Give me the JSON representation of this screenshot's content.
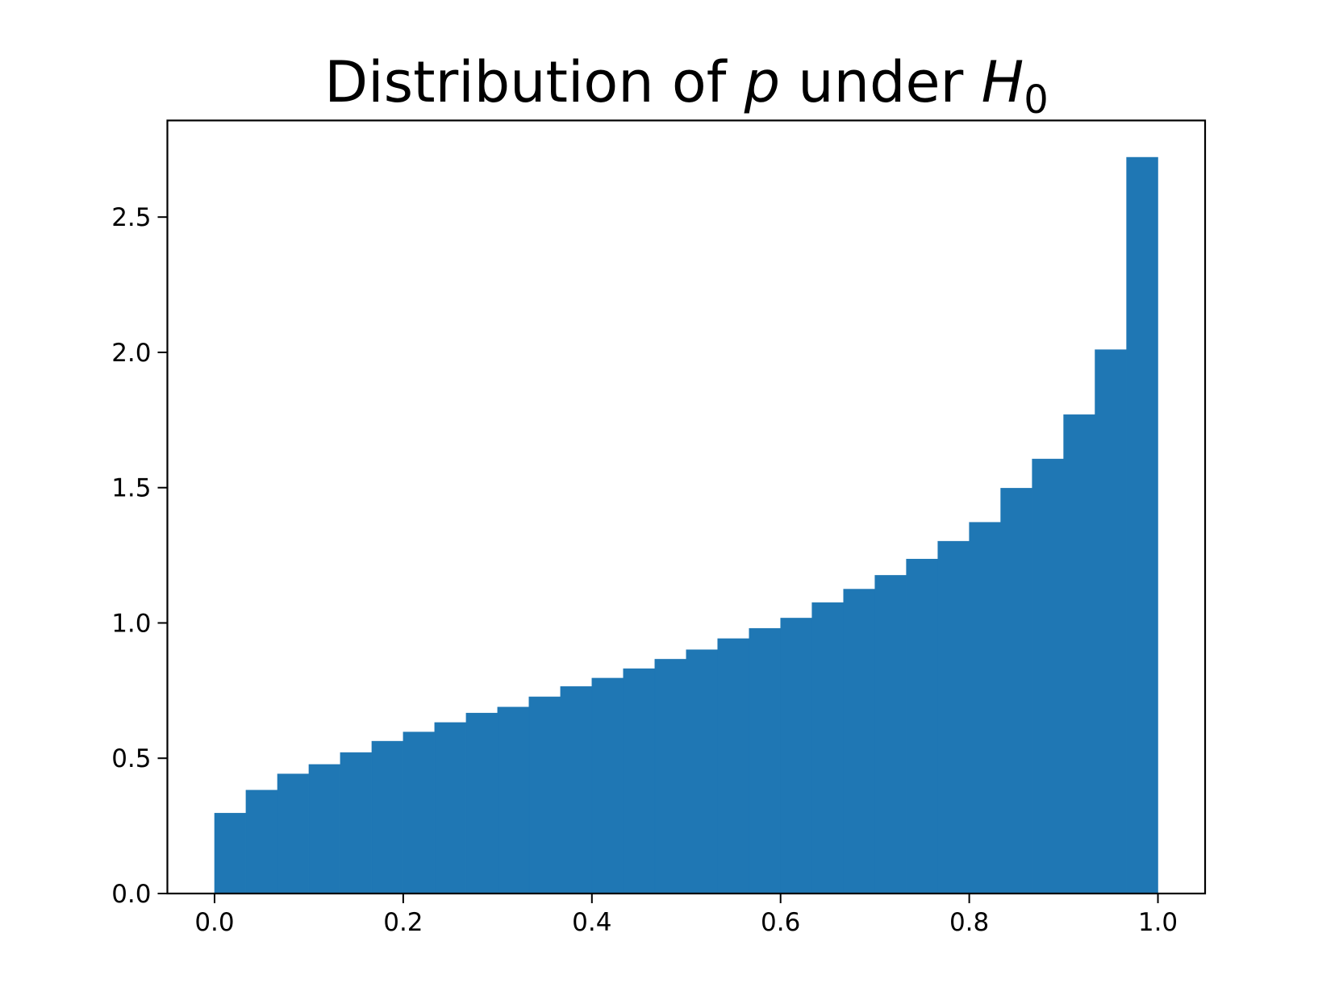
{
  "chart_data": {
    "type": "histogram",
    "title": [
      "Distribution of ",
      "p",
      " under ",
      "H",
      "0"
    ],
    "bins": [
      0,
      0.0333,
      0.0667,
      0.1,
      0.1333,
      0.1667,
      0.2,
      0.2333,
      0.2667,
      0.3,
      0.3333,
      0.3667,
      0.4,
      0.4333,
      0.4667,
      0.5,
      0.5333,
      0.5667,
      0.6,
      0.6333,
      0.6667,
      0.7,
      0.7333,
      0.7667,
      0.8,
      0.8333,
      0.8667,
      0.9,
      0.9333,
      0.9667,
      1
    ],
    "values": [
      0.297,
      0.382,
      0.442,
      0.477,
      0.521,
      0.563,
      0.597,
      0.632,
      0.667,
      0.689,
      0.727,
      0.765,
      0.796,
      0.831,
      0.866,
      0.901,
      0.942,
      0.98,
      1.018,
      1.075,
      1.125,
      1.176,
      1.236,
      1.302,
      1.372,
      1.498,
      1.606,
      1.77,
      2.01,
      2.721
    ],
    "color": "#1f77b4",
    "xlim": [
      -0.05,
      1.05
    ],
    "ylim": [
      0,
      2.857
    ],
    "xticks": [
      {
        "value": 0,
        "label": "0.0"
      },
      {
        "value": 0.2,
        "label": "0.2"
      },
      {
        "value": 0.4,
        "label": "0.4"
      },
      {
        "value": 0.6,
        "label": "0.6"
      },
      {
        "value": 0.8,
        "label": "0.8"
      },
      {
        "value": 1,
        "label": "1.0"
      }
    ],
    "yticks": [
      {
        "value": 0,
        "label": "0.0"
      },
      {
        "value": 0.5,
        "label": "0.5"
      },
      {
        "value": 1,
        "label": "1.0"
      },
      {
        "value": 1.5,
        "label": "1.5"
      },
      {
        "value": 2,
        "label": "2.0"
      },
      {
        "value": 2.5,
        "label": "2.5"
      }
    ]
  }
}
